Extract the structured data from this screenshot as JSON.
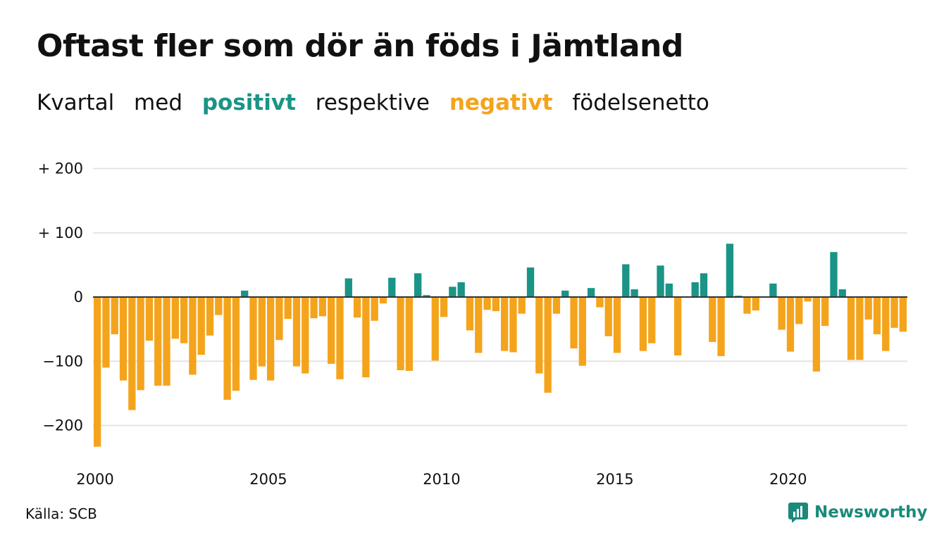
{
  "header": {
    "title": "Oftast fler som dör än föds i Jämtland",
    "subtitle": {
      "w1": "Kvartal",
      "w2": "med",
      "w3": "positivt",
      "w4": "respektive",
      "w5": "negativt",
      "w6": "födelsenetto"
    }
  },
  "footer": {
    "source": "Källa: SCB",
    "brand": "Newsworthy",
    "brand_icon": "newsworthy-logo-icon"
  },
  "colors": {
    "positive": "#1a9487",
    "negative": "#f4a41c",
    "grid": "#e4e4e4",
    "zero_line": "#333333",
    "brand": "#1a8a7a"
  },
  "chart_data": {
    "type": "bar",
    "title": "Oftast fler som dör än föds i Jämtland",
    "subtitle": "Kvartal med positivt respektive negativt födelsenetto",
    "xlabel": "",
    "ylabel": "",
    "x_start": "2000 Q1",
    "period": "quarter",
    "ylim": [
      -250,
      220
    ],
    "y_ticks": [
      200,
      100,
      0,
      -100,
      -200
    ],
    "y_tick_labels": [
      "+ 200",
      "+ 100",
      "0",
      "−100",
      "−200"
    ],
    "x_tick_labels": [
      "2000",
      "2005",
      "2010",
      "2015",
      "2020"
    ],
    "grid": true,
    "legend": "in subtitle",
    "values": [
      -233,
      -110,
      -58,
      -130,
      -176,
      -145,
      -68,
      -138,
      -138,
      -65,
      -72,
      -121,
      -90,
      -60,
      -28,
      -160,
      -146,
      10,
      -129,
      -108,
      -130,
      -67,
      -34,
      -108,
      -119,
      -33,
      -30,
      -104,
      -128,
      29,
      -32,
      -125,
      -37,
      -10,
      30,
      -114,
      -115,
      37,
      3,
      -99,
      -31,
      16,
      23,
      -52,
      -87,
      -20,
      -22,
      -84,
      -86,
      -26,
      46,
      -119,
      -149,
      -26,
      10,
      -80,
      -107,
      14,
      -16,
      -61,
      -87,
      51,
      12,
      -84,
      -72,
      49,
      21,
      -91,
      0,
      23,
      37,
      -70,
      -92,
      83,
      2,
      -26,
      -21,
      0,
      21,
      -51,
      -85,
      -42,
      -7,
      -116,
      -45,
      70,
      12,
      -98,
      -98,
      -35,
      -58,
      -84,
      -48,
      -54
    ]
  }
}
